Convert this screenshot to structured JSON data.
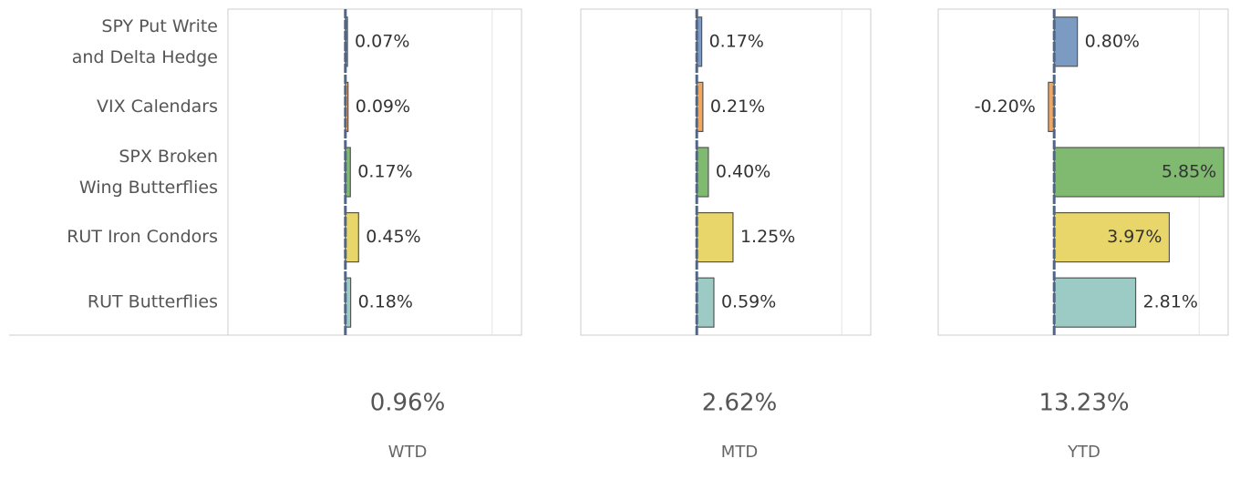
{
  "chart_data": {
    "type": "bar",
    "orientation": "horizontal",
    "categories": [
      "SPY Put Write and Delta Hedge",
      "VIX Calendars",
      "SPX Broken Wing Butterflies",
      "RUT Iron Condors",
      "RUT Butterflies"
    ],
    "colors": [
      "#7b9bc2",
      "#f0a860",
      "#7fba70",
      "#e8d66a",
      "#9ccbc6"
    ],
    "xlim": [
      -4,
      6
    ],
    "xticks": [
      0,
      5
    ],
    "grid": true,
    "panels": [
      {
        "name": "WTD",
        "total": 0.96,
        "total_label": "0.96%",
        "values": [
          0.07,
          0.09,
          0.17,
          0.45,
          0.18
        ],
        "value_labels": [
          "0.07%",
          "0.09%",
          "0.17%",
          "0.45%",
          "0.18%"
        ]
      },
      {
        "name": "MTD",
        "total": 2.62,
        "total_label": "2.62%",
        "values": [
          0.17,
          0.21,
          0.4,
          1.25,
          0.59
        ],
        "value_labels": [
          "0.17%",
          "0.21%",
          "0.40%",
          "1.25%",
          "0.59%"
        ]
      },
      {
        "name": "YTD",
        "total": 13.23,
        "total_label": "13.23%",
        "values": [
          0.8,
          -0.2,
          5.85,
          3.97,
          2.81
        ],
        "value_labels": [
          "0.80%",
          "-0.20%",
          "5.85%",
          "3.97%",
          "2.81%"
        ]
      }
    ]
  }
}
